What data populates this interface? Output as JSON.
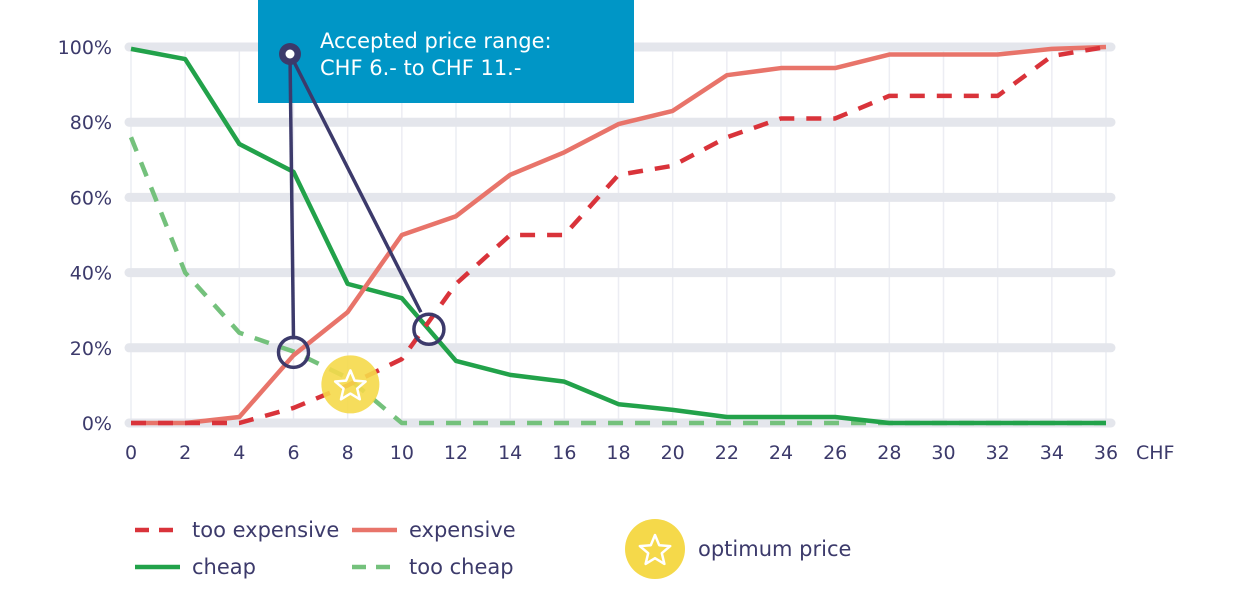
{
  "chart_data": {
    "type": "line",
    "title": "",
    "xlabel": "CHF",
    "ylabel": "",
    "xlim": [
      0,
      36
    ],
    "ylim": [
      0,
      100
    ],
    "x": [
      0,
      2,
      4,
      6,
      8,
      10,
      12,
      14,
      16,
      18,
      20,
      22,
      24,
      26,
      28,
      30,
      32,
      34,
      36
    ],
    "x_tick_labels": [
      "0",
      "2",
      "4",
      "6",
      "8",
      "10",
      "12",
      "14",
      "16",
      "18",
      "20",
      "22",
      "24",
      "26",
      "28",
      "30",
      "32",
      "34",
      "36"
    ],
    "y_ticks": [
      0,
      20,
      40,
      60,
      80,
      100
    ],
    "y_tick_labels": [
      "0%",
      "20%",
      "40%",
      "60%",
      "80%",
      "100%"
    ],
    "series": [
      {
        "name": "too expensive",
        "style": "dashed",
        "color": "#d9333a",
        "values": [
          0,
          0,
          0,
          4,
          10,
          17,
          37,
          50,
          50,
          66,
          68.4,
          76,
          81,
          81,
          87,
          87,
          87,
          97.6,
          100
        ]
      },
      {
        "name": "expensive",
        "style": "solid",
        "color": "#e8746a",
        "values": [
          0,
          0,
          1.6,
          18,
          29.5,
          50,
          55,
          66,
          72,
          79.5,
          83,
          92.5,
          94.4,
          94.4,
          98,
          98,
          98,
          99.5,
          100
        ]
      },
      {
        "name": "cheap",
        "style": "solid",
        "color": "#22a24a",
        "values": [
          99.5,
          96.8,
          74.2,
          66.8,
          37,
          33.2,
          16.5,
          12.8,
          11,
          5,
          3.5,
          1.6,
          1.6,
          1.6,
          0,
          0,
          0,
          0,
          0
        ]
      },
      {
        "name": "too cheap",
        "style": "dashed",
        "color": "#74c17c",
        "values": [
          76,
          40,
          24,
          19,
          12,
          0,
          0,
          0,
          0,
          0,
          0,
          0,
          0,
          0,
          0,
          0,
          0,
          0,
          0
        ]
      }
    ],
    "annotation": {
      "line1": "Accepted price range:",
      "line2": "CHF 6.- to CHF 11.-",
      "range": [
        6,
        11
      ],
      "range_y": [
        18,
        26
      ]
    },
    "optimum": {
      "label": "optimum price",
      "x": 8.1,
      "y": 10
    },
    "legend_placement": "bottom-left",
    "grid": true
  },
  "colors": {
    "annotation_bg": "#0096c6",
    "marker": "#3c3a6b",
    "optimum": "#f5d94a",
    "grid": "#e4e6ec"
  }
}
